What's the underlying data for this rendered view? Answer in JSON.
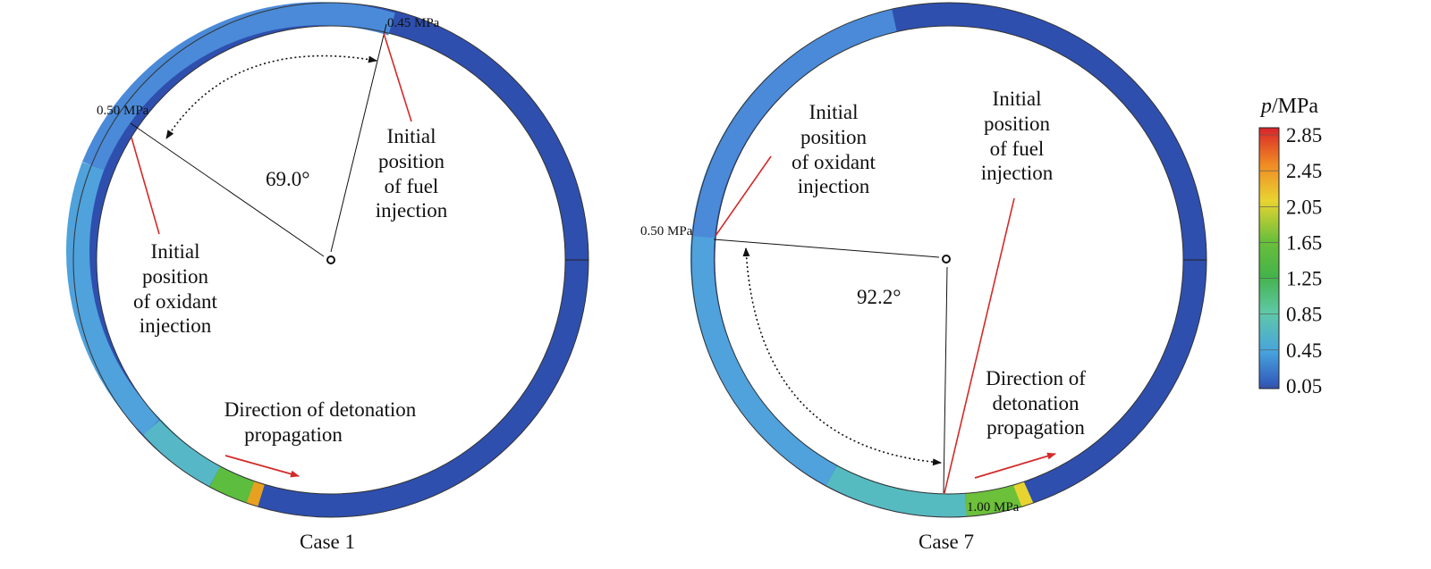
{
  "case1": {
    "caption": "Case 1",
    "angle_label": "69.0°",
    "fuel_pressure_label": "0.45 MPa",
    "oxidant_pressure_label": "0.50 MPa",
    "fuel_label": [
      "Initial",
      "position",
      "of fuel",
      "injection"
    ],
    "oxidant_label": [
      "Initial",
      "position",
      "of oxidant",
      "injection"
    ],
    "direction_label": [
      "Direction of detonation",
      "propagation"
    ]
  },
  "case7": {
    "caption": "Case 7",
    "angle_label": "92.2°",
    "oxidant_pressure_label": "0.50 MPa",
    "front_pressure_label": "1.00 MPa",
    "fuel_label": [
      "Initial",
      "position",
      "of fuel",
      "injection"
    ],
    "oxidant_label": [
      "Initial",
      "position",
      "of oxidant",
      "injection"
    ],
    "direction_label": [
      "Direction of",
      "detonation",
      "propagation"
    ]
  },
  "colorbar": {
    "title_symbol": "p",
    "title_unit": "/MPa",
    "ticks": [
      "2.85",
      "2.45",
      "2.05",
      "1.65",
      "1.25",
      "0.85",
      "0.45",
      "0.05"
    ],
    "colors": [
      "#d8242a",
      "#f08a24",
      "#e8d430",
      "#6cc03a",
      "#45b34a",
      "#5fc8a8",
      "#47a3dc",
      "#2f52b8"
    ]
  }
}
